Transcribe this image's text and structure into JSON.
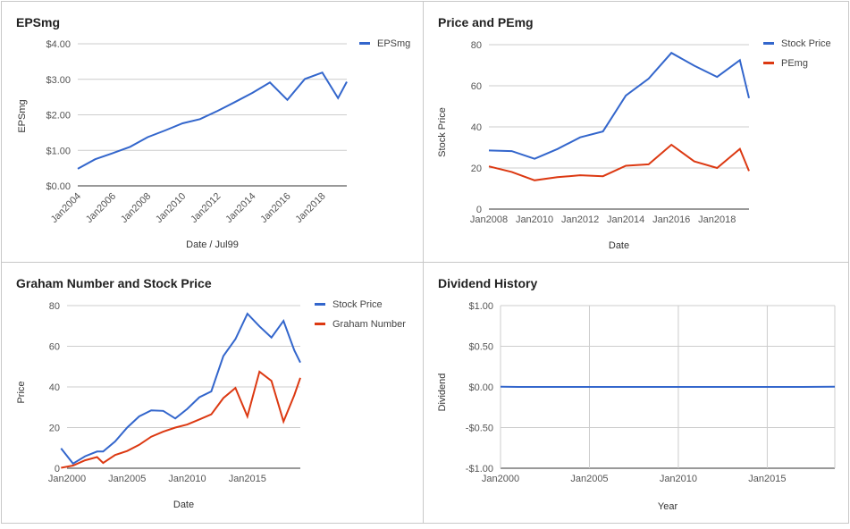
{
  "chart_data": [
    {
      "id": "eps",
      "type": "line",
      "title": "EPSmg",
      "xlabel": "Date / Jul99",
      "ylabel": "EPSmg",
      "xlim": [
        2004,
        2019.4
      ],
      "ylim": [
        0,
        4
      ],
      "yticks": [
        0,
        1,
        2,
        3,
        4
      ],
      "ytick_labels": [
        "$0.00",
        "$1.00",
        "$2.00",
        "$3.00",
        "$4.00"
      ],
      "xticks": [
        2004,
        2006,
        2008,
        2010,
        2012,
        2014,
        2016,
        2018
      ],
      "xtick_labels": [
        "Jan2004",
        "Jan2006",
        "Jan2008",
        "Jan2010",
        "Jan2012",
        "Jan2014",
        "Jan2016",
        "Jan2018"
      ],
      "xtick_rotate": true,
      "grid": true,
      "legend": "right",
      "series": [
        {
          "name": "EPSmg",
          "color": "#3366cc",
          "x": [
            2004,
            2005,
            2006,
            2007,
            2008,
            2009,
            2010,
            2011,
            2012,
            2013,
            2014,
            2015,
            2016,
            2017,
            2018,
            2018.9,
            2019.4
          ],
          "y": [
            0.48,
            0.75,
            0.92,
            1.1,
            1.37,
            1.56,
            1.76,
            1.88,
            2.11,
            2.36,
            2.62,
            2.91,
            2.42,
            3.01,
            3.19,
            2.47,
            2.93
          ]
        }
      ]
    },
    {
      "id": "price_pe",
      "type": "line",
      "title": "Price and PEmg",
      "xlabel": "Date",
      "ylabel": "Stock Price",
      "xlim": [
        2008,
        2019.4
      ],
      "ylim": [
        0,
        80
      ],
      "yticks": [
        0,
        20,
        40,
        60,
        80
      ],
      "ytick_labels": [
        "0",
        "20",
        "40",
        "60",
        "80"
      ],
      "xticks": [
        2008,
        2010,
        2012,
        2014,
        2016,
        2018
      ],
      "xtick_labels": [
        "Jan2008",
        "Jan2010",
        "Jan2012",
        "Jan2014",
        "Jan2016",
        "Jan2018"
      ],
      "xtick_rotate": false,
      "grid": true,
      "legend": "right",
      "series": [
        {
          "name": "Stock Price",
          "color": "#3366cc",
          "x": [
            2008,
            2009,
            2010,
            2011,
            2012,
            2013,
            2014,
            2015,
            2016,
            2017,
            2018,
            2019,
            2019.4
          ],
          "y": [
            28.5,
            28.2,
            24.5,
            29.2,
            34.9,
            37.8,
            55.2,
            63.5,
            76.0,
            69.8,
            64.3,
            72.5,
            54.0
          ]
        },
        {
          "name": "PEmg",
          "color": "#dc3912",
          "x": [
            2008,
            2009,
            2010,
            2011,
            2012,
            2013,
            2014,
            2015,
            2016,
            2017,
            2018,
            2019,
            2019.4
          ],
          "y": [
            20.8,
            18.1,
            14.0,
            15.5,
            16.5,
            16.0,
            21.1,
            21.8,
            31.3,
            23.2,
            20.0,
            29.3,
            18.5
          ]
        }
      ]
    },
    {
      "id": "graham",
      "type": "line",
      "title": "Graham Number and Stock Price",
      "xlabel": "Date",
      "ylabel": "Price",
      "xlim": [
        2000,
        2019.4
      ],
      "ylim": [
        0,
        80
      ],
      "yticks": [
        0,
        20,
        40,
        60,
        80
      ],
      "ytick_labels": [
        "0",
        "20",
        "40",
        "60",
        "80"
      ],
      "xticks": [
        2000,
        2005,
        2010,
        2015
      ],
      "xtick_labels": [
        "Jan2000",
        "Jan2005",
        "Jan2010",
        "Jan2015"
      ],
      "xtick_rotate": false,
      "grid": true,
      "legend": "right",
      "series": [
        {
          "name": "Stock Price",
          "color": "#3366cc",
          "x": [
            1999.5,
            2000.5,
            2001.5,
            2002.5,
            2003,
            2004,
            2005,
            2006,
            2007,
            2008,
            2009,
            2010,
            2011,
            2012,
            2013,
            2014,
            2015,
            2016,
            2017,
            2018,
            2018.9,
            2019.4
          ],
          "y": [
            9.8,
            2.3,
            5.9,
            8.2,
            8.2,
            13.2,
            20.0,
            25.5,
            28.5,
            28.2,
            24.5,
            29.2,
            34.9,
            37.8,
            55.2,
            63.5,
            76.0,
            69.8,
            64.3,
            72.5,
            58.0,
            52.0
          ]
        },
        {
          "name": "Graham Number",
          "color": "#dc3912",
          "x": [
            1999.5,
            2000.5,
            2001.5,
            2002.5,
            2003,
            2004,
            2005,
            2006,
            2007,
            2008,
            2009,
            2010,
            2011,
            2012,
            2013,
            2014,
            2015,
            2016,
            2017,
            2018,
            2018.9,
            2019.4
          ],
          "y": [
            0.2,
            1.3,
            3.9,
            5.5,
            2.6,
            6.5,
            8.5,
            11.5,
            15.5,
            18.0,
            20.0,
            21.5,
            24.0,
            26.5,
            34.5,
            39.5,
            25.5,
            47.5,
            43.0,
            23.0,
            36.0,
            44.5
          ]
        }
      ]
    },
    {
      "id": "dividend",
      "type": "line",
      "title": "Dividend History",
      "xlabel": "Year",
      "ylabel": "Dividend",
      "xlim": [
        2000,
        2018.8
      ],
      "ylim": [
        -1,
        1
      ],
      "yticks": [
        -1,
        -0.5,
        0,
        0.5,
        1
      ],
      "ytick_labels": [
        "-$1.00",
        "-$0.50",
        "$0.00",
        "$0.50",
        "$1.00"
      ],
      "xticks": [
        2000,
        2005,
        2010,
        2015
      ],
      "xtick_labels": [
        "Jan2000",
        "Jan2005",
        "Jan2010",
        "Jan2015"
      ],
      "xtick_rotate": false,
      "grid": true,
      "legend": "none",
      "series": [
        {
          "color": "#3366cc",
          "x": [
            2000,
            2001,
            2017,
            2018.8
          ],
          "y": [
            0.003,
            0,
            0,
            0.003
          ]
        }
      ]
    }
  ]
}
